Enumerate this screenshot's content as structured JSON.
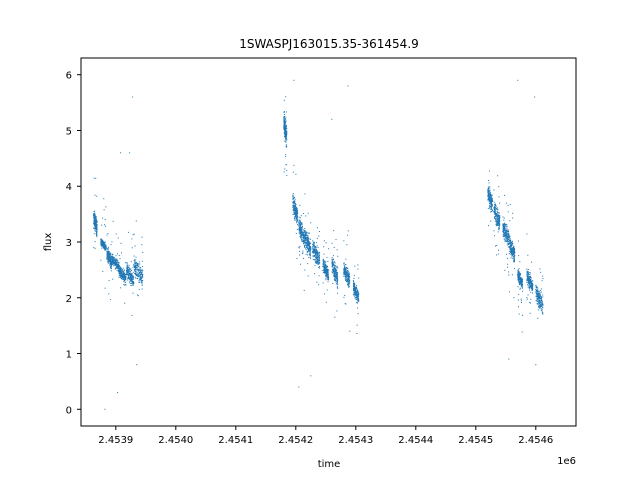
{
  "chart_data": {
    "type": "scatter",
    "title": "1SWASPJ163015.35-361454.9",
    "xlabel": "time",
    "ylabel": "flux",
    "x_offset_label": "1e6",
    "x_unit_scale": 1000000,
    "xlim": [
      2453842,
      2454667
    ],
    "ylim": [
      -0.3,
      6.3
    ],
    "x_ticks": [
      2453900,
      2454000,
      2454100,
      2454200,
      2454300,
      2454400,
      2454500,
      2454600
    ],
    "x_tick_labels": [
      "2.4539",
      "2.4540",
      "2.4541",
      "2.4542",
      "2.4543",
      "2.4544",
      "2.4545",
      "2.4546"
    ],
    "y_ticks": [
      0,
      1,
      2,
      3,
      4,
      5,
      6
    ],
    "y_tick_labels": [
      "0",
      "1",
      "2",
      "3",
      "4",
      "5",
      "6"
    ],
    "grid": false,
    "marker_color": "#1f77b4",
    "series": [
      {
        "segments": [
          {
            "x": [
              2453863,
              2453869
            ],
            "y": [
              3.0,
              3.45
            ]
          },
          {
            "x": [
              2453875,
              2453884
            ],
            "y": [
              2.8,
              3.0
            ]
          },
          {
            "x": [
              2453885,
              2453893
            ],
            "y": [
              2.4,
              2.8
            ]
          },
          {
            "x": [
              2453893,
              2453905
            ],
            "y": [
              2.4,
              2.7
            ]
          },
          {
            "x": [
              2453905,
              2453917
            ],
            "y": [
              2.2,
              2.5
            ]
          },
          {
            "x": [
              2453918,
              2453930
            ],
            "y": [
              2.1,
              2.5
            ]
          },
          {
            "x": [
              2453930,
              2453945
            ],
            "y": [
              2.1,
              2.6
            ]
          },
          {
            "x": [
              2454180,
              2454185
            ],
            "y": [
              4.5,
              5.2
            ]
          },
          {
            "x": [
              2454195,
              2454203
            ],
            "y": [
              3.2,
              3.7
            ]
          },
          {
            "x": [
              2454205,
              2454215
            ],
            "y": [
              2.8,
              3.3
            ]
          },
          {
            "x": [
              2454215,
              2454225
            ],
            "y": [
              2.6,
              3.1
            ]
          },
          {
            "x": [
              2454228,
              2454240
            ],
            "y": [
              2.4,
              2.9
            ]
          },
          {
            "x": [
              2454245,
              2454255
            ],
            "y": [
              2.2,
              2.6
            ]
          },
          {
            "x": [
              2454260,
              2454270
            ],
            "y": [
              2.1,
              2.6
            ]
          },
          {
            "x": [
              2454280,
              2454290
            ],
            "y": [
              2.1,
              2.5
            ]
          },
          {
            "x": [
              2454296,
              2454305
            ],
            "y": [
              1.8,
              2.2
            ]
          },
          {
            "x": [
              2454520,
              2454528
            ],
            "y": [
              3.4,
              3.9
            ]
          },
          {
            "x": [
              2454530,
              2454540
            ],
            "y": [
              3.1,
              3.6
            ]
          },
          {
            "x": [
              2454545,
              2454555
            ],
            "y": [
              2.8,
              3.3
            ]
          },
          {
            "x": [
              2454555,
              2454565
            ],
            "y": [
              2.5,
              3.0
            ]
          },
          {
            "x": [
              2454570,
              2454578
            ],
            "y": [
              2.1,
              2.4
            ]
          },
          {
            "x": [
              2454585,
              2454595
            ],
            "y": [
              2.0,
              2.4
            ]
          },
          {
            "x": [
              2454600,
              2454612
            ],
            "y": [
              1.6,
              2.1
            ]
          }
        ],
        "outliers": [
          [
            2453882,
            0.0
          ],
          [
            2453903,
            0.3
          ],
          [
            2453908,
            4.6
          ],
          [
            2453923,
            4.6
          ],
          [
            2453935,
            0.8
          ],
          [
            2453928,
            5.6
          ],
          [
            2454260,
            5.2
          ],
          [
            2454287,
            5.8
          ],
          [
            2454197,
            5.9
          ],
          [
            2454225,
            0.6
          ],
          [
            2454205,
            0.4
          ],
          [
            2454598,
            5.6
          ],
          [
            2454570,
            5.9
          ],
          [
            2454600,
            0.8
          ],
          [
            2454290,
            1.4
          ],
          [
            2454555,
            0.9
          ]
        ]
      }
    ]
  }
}
